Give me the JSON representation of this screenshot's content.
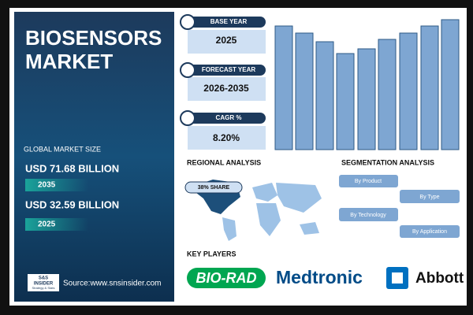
{
  "header": {
    "title_line1": "BIOSENSORS",
    "title_line2": "MARKET"
  },
  "market_size": {
    "label": "GLOBAL MARKET SIZE",
    "items": [
      {
        "value": "USD 71.68 BILLION",
        "year": "2035"
      },
      {
        "value": "USD 32.59 BILLION",
        "year": "2025"
      }
    ]
  },
  "cards": [
    {
      "label": "BASE YEAR",
      "value": "2025"
    },
    {
      "label": "FORECAST YEAR",
      "value": "2026-2035"
    },
    {
      "label": "CAGR %",
      "value": "8.20%"
    }
  ],
  "regional": {
    "title": "REGIONAL ANALYSIS",
    "share": "38% SHARE"
  },
  "segmentation": {
    "title": "SEGMENTATION ANALYSIS",
    "segments": [
      "By Product",
      "By Type",
      "By Technology",
      "By Application"
    ]
  },
  "key_players": {
    "title": "KEY PLAYERS",
    "players": [
      "BIO-RAD",
      "Medtronic",
      "Abbott"
    ]
  },
  "footer": {
    "logo_top": "S&S",
    "logo_mid": "INSIDER",
    "logo_bottom": "Strategy & Stats",
    "source": "Source:www.snsinsider.com"
  }
}
